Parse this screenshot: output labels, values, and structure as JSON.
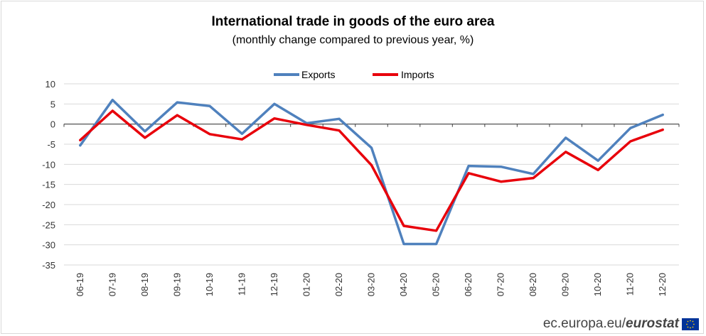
{
  "chart_data": {
    "type": "line",
    "title": "International trade in goods of the euro area",
    "subtitle": "(monthly change compared to previous year, %)",
    "categories": [
      "06-19",
      "07-19",
      "08-19",
      "09-19",
      "10-19",
      "11-19",
      "12-19",
      "01-20",
      "02-20",
      "03-20",
      "04-20",
      "05-20",
      "06-20",
      "07-20",
      "08-20",
      "09-20",
      "10-20",
      "11-20",
      "12-20"
    ],
    "series": [
      {
        "name": "Exports",
        "color": "#4F81BD",
        "values": [
          -5.3,
          6.0,
          -1.8,
          5.4,
          4.5,
          -2.4,
          5.0,
          0.2,
          1.3,
          -5.9,
          -29.8,
          -29.8,
          -10.4,
          -10.6,
          -12.4,
          -3.4,
          -9.1,
          -1.0,
          2.3
        ]
      },
      {
        "name": "Imports",
        "color": "#E8000B",
        "values": [
          -4.0,
          3.3,
          -3.4,
          2.2,
          -2.5,
          -3.8,
          1.4,
          -0.2,
          -1.6,
          -10.2,
          -25.3,
          -26.5,
          -12.2,
          -14.3,
          -13.4,
          -6.9,
          -11.4,
          -4.3,
          -1.4
        ]
      }
    ],
    "yticks": [
      10,
      5,
      0,
      -5,
      -10,
      -15,
      -20,
      -25,
      -30,
      -35
    ],
    "ylim": [
      -35,
      10
    ],
    "legend": "top-center",
    "grid": true
  },
  "footer": {
    "site": "ec.europa.eu/",
    "brand": "eurostat"
  }
}
